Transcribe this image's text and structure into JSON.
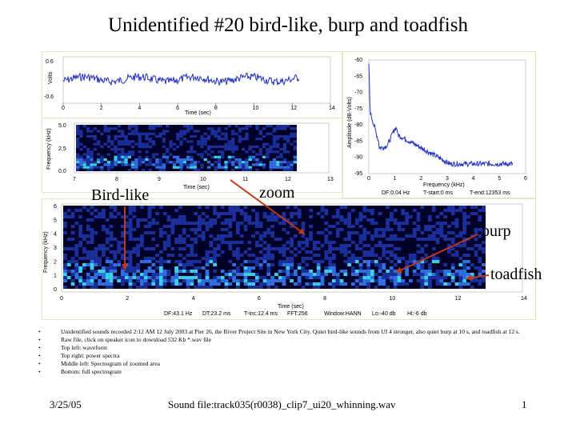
{
  "title": "Unidentified #20 bird-like, burp and toadfish",
  "waveform": {
    "ylabel": "Volts",
    "xlabel": "Time (sec)",
    "yticks": [
      "0.6",
      "-0.6"
    ],
    "xticks": [
      "0",
      "2",
      "4",
      "6",
      "8",
      "10",
      "12",
      "14"
    ],
    "xlim": [
      0,
      14
    ],
    "ylim": [
      -0.6,
      0.6
    ],
    "color": "#1f2fbf"
  },
  "power_spectrum": {
    "ylabel": "Amplitude (dB-Volts)",
    "xlabel": "Frequency (kHz)",
    "yticks": [
      "-60",
      "-65",
      "-70",
      "-75",
      "-80",
      "-85",
      "-90",
      "-95"
    ],
    "xticks": [
      "0",
      "1",
      "2",
      "3",
      "4",
      "5",
      "6"
    ],
    "xlim": [
      0,
      6
    ],
    "ylim": [
      -95,
      -60
    ],
    "stats": [
      "DF:0.04 Hz",
      "T-start:0 ms",
      "T-end:12353 ms"
    ],
    "color": "#1f2fbf"
  },
  "zoom_spectrogram": {
    "ylabel": "Frequency (kHz)",
    "xlabel": "Time (sec)",
    "yticks": [
      "5.0",
      "2.5",
      "0.0"
    ],
    "xticks": [
      "7",
      "8",
      "9",
      "10",
      "11",
      "12",
      "13"
    ]
  },
  "full_spectrogram": {
    "ylabel": "Frequency (kHz)",
    "xlabel": "Time (sec)",
    "yticks": [
      "6",
      "5",
      "4",
      "3",
      "2",
      "1",
      "0"
    ],
    "xticks": [
      "0",
      "2",
      "4",
      "6",
      "8",
      "10",
      "12",
      "14"
    ],
    "stats": [
      "DF:43.1 Hz",
      "DT:23.2 ms",
      "T-inc:12.4 ms",
      "FFT:256",
      "Window:HANN",
      "Lo:-40 db",
      "Hi:-6 db"
    ]
  },
  "annotations": {
    "bird_like": "Bird-like",
    "zoom": "zoom",
    "burp": "burp",
    "toadfish": "toadfish",
    "arrow_color": "#c0391b"
  },
  "bullets": [
    "Unidentified sounds recorded 2:12 AM 12 July 2003 at Pier 26, the River Project Site in New York City.  Quiet bird-like sounds from UI 4 stronger, also quiet burp at 10 s, and toadfish at 12 s.",
    "Raw file, click on speaker icon to download 532 Kb *.wav file",
    "Top left: waveform",
    "Top right: power spectra",
    "Middle left: Spectrogram of zoomed area",
    "Bottom: full spectrogram"
  ],
  "footer": {
    "date": "3/25/05",
    "sound_file": "Sound file:track035(r0038)_clip7_ui20_whinning.wav",
    "page": "1"
  }
}
